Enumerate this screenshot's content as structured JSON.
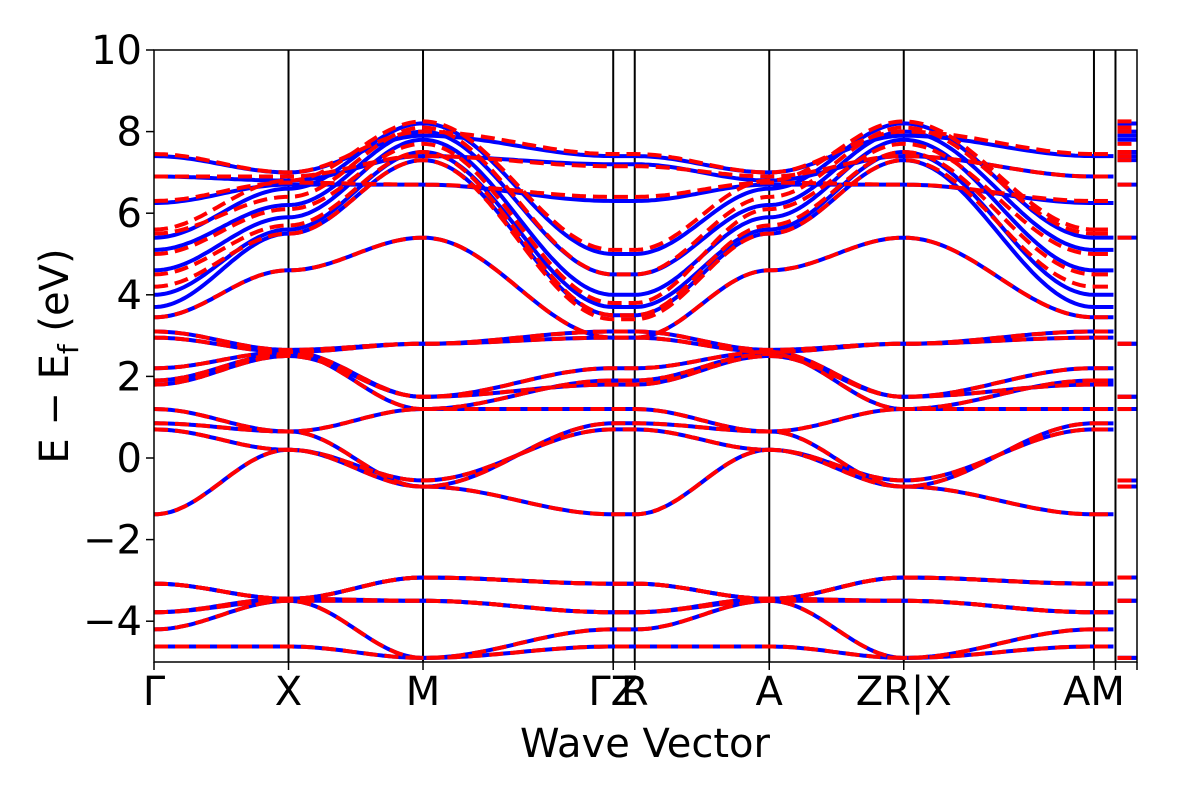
{
  "chart_data": {
    "type": "line",
    "title": "",
    "xlabel": "Wave Vector",
    "ylabel_parts": {
      "main": "E − E",
      "sub": "f",
      "unit": " (eV)"
    },
    "ylim": [
      -5,
      10
    ],
    "yticks": [
      -4,
      -2,
      0,
      2,
      4,
      6,
      8,
      10
    ],
    "ytick_labels": [
      "−4",
      "−2",
      "0",
      "2",
      "4",
      "6",
      "8",
      "10"
    ],
    "kpath": [
      {
        "label": "Γ",
        "x": 0.0
      },
      {
        "label": "X",
        "x": 0.5
      },
      {
        "label": "M",
        "x": 1.0
      },
      {
        "label": "Γ",
        "x": 1.707
      },
      {
        "label": "Z",
        "x": 1.787
      },
      {
        "label": "R",
        "x": 2.287
      },
      {
        "label": "A",
        "x": 2.787
      },
      {
        "label": "Z",
        "x": 3.494
      },
      {
        "label": "R",
        "x": 3.494
      },
      {
        "label": "X",
        "x": 3.574
      },
      {
        "label": "A",
        "x": 3.574
      },
      {
        "label": "M",
        "x": 3.654
      }
    ],
    "tick_text": [
      "Γ",
      "X",
      "M",
      "ΓZ",
      "R",
      "A",
      "ZR|X",
      "AM"
    ],
    "xlim": [
      0.0,
      3.654
    ],
    "legend": "none",
    "grid": false,
    "series_colors": {
      "solid": "#0000ff",
      "dashed": "#ff0000"
    },
    "valence_bands": [
      {
        "nodes": [
          -4.62,
          -4.62,
          -4.9,
          -4.62,
          -4.62,
          -4.62,
          -4.9,
          -4.62
        ]
      },
      {
        "nodes": [
          -4.2,
          -3.5,
          -4.9,
          -4.2,
          -4.2,
          -3.5,
          -4.9,
          -4.2
        ]
      },
      {
        "nodes": [
          -3.78,
          -3.5,
          -3.5,
          -3.78,
          -3.78,
          -3.5,
          -3.5,
          -3.78
        ]
      },
      {
        "nodes": [
          -3.78,
          -3.45,
          -3.5,
          -3.78,
          -3.78,
          -3.45,
          -3.5,
          -3.78
        ]
      },
      {
        "nodes": [
          -3.08,
          -3.45,
          -2.93,
          -3.08,
          -3.08,
          -3.45,
          -2.93,
          -3.08
        ]
      },
      {
        "nodes": [
          -3.08,
          -3.45,
          -2.93,
          -3.08,
          -3.08,
          -3.45,
          -2.93,
          -3.08
        ]
      },
      {
        "nodes": [
          -1.38,
          0.2,
          -0.7,
          -1.38,
          -1.38,
          0.2,
          -0.7,
          -1.38
        ]
      },
      {
        "nodes": [
          0.7,
          0.2,
          -0.55,
          0.7,
          0.7,
          0.2,
          -0.55,
          0.7
        ]
      },
      {
        "nodes": [
          0.85,
          0.65,
          -0.7,
          0.85,
          0.85,
          0.65,
          -0.7,
          0.85
        ]
      },
      {
        "nodes": [
          1.2,
          0.65,
          1.2,
          1.2,
          1.2,
          0.65,
          1.2,
          1.2
        ]
      },
      {
        "nodes": [
          1.8,
          2.5,
          1.5,
          1.8,
          1.8,
          2.5,
          1.5,
          1.8
        ]
      },
      {
        "nodes": [
          1.9,
          2.55,
          1.2,
          1.9,
          1.9,
          2.55,
          1.2,
          1.9
        ]
      },
      {
        "nodes": [
          2.2,
          2.6,
          1.5,
          2.2,
          2.2,
          2.6,
          1.5,
          2.2
        ]
      },
      {
        "nodes": [
          2.95,
          2.6,
          2.8,
          2.95,
          2.95,
          2.6,
          2.8,
          2.95
        ]
      },
      {
        "nodes": [
          3.1,
          2.65,
          2.8,
          3.1,
          3.1,
          2.65,
          2.8,
          3.1
        ]
      }
    ],
    "conduction_bands": [
      {
        "blue": [
          3.45,
          4.6,
          5.4,
          2.95,
          2.95,
          4.6,
          5.4,
          3.45
        ],
        "red": [
          3.45,
          4.6,
          5.4,
          2.95,
          2.95,
          4.6,
          5.4,
          3.45
        ]
      },
      {
        "blue": [
          3.7,
          5.5,
          7.3,
          3.5,
          3.5,
          5.5,
          7.3,
          3.7
        ],
        "red": [
          4.2,
          5.5,
          7.3,
          3.4,
          3.4,
          5.5,
          7.3,
          4.2
        ]
      },
      {
        "blue": [
          4.0,
          5.6,
          7.5,
          3.7,
          3.7,
          5.6,
          7.5,
          4.0
        ],
        "red": [
          4.5,
          5.7,
          7.5,
          3.5,
          3.5,
          5.7,
          7.5,
          4.5
        ]
      },
      {
        "blue": [
          4.6,
          5.9,
          7.8,
          4.0,
          4.0,
          5.9,
          7.8,
          4.6
        ],
        "red": [
          5.0,
          6.1,
          7.7,
          3.8,
          3.8,
          6.1,
          7.7,
          5.0
        ]
      },
      {
        "blue": [
          5.1,
          6.2,
          8.0,
          4.5,
          4.5,
          6.2,
          8.0,
          5.1
        ],
        "red": [
          5.5,
          6.4,
          8.1,
          4.5,
          4.5,
          6.4,
          8.1,
          5.5
        ]
      },
      {
        "blue": [
          5.4,
          6.6,
          8.2,
          5.0,
          5.0,
          6.6,
          8.2,
          5.4
        ],
        "red": [
          5.6,
          6.8,
          8.25,
          5.1,
          5.1,
          6.8,
          8.25,
          5.6
        ]
      },
      {
        "blue": [
          6.25,
          6.7,
          6.7,
          6.3,
          6.3,
          6.7,
          6.7,
          6.25
        ],
        "red": [
          6.3,
          6.75,
          6.7,
          6.4,
          6.4,
          6.75,
          6.7,
          6.3
        ]
      },
      {
        "blue": [
          6.9,
          6.8,
          7.4,
          7.2,
          7.2,
          6.8,
          7.4,
          6.9
        ],
        "red": [
          6.9,
          6.9,
          7.4,
          7.15,
          7.15,
          6.9,
          7.4,
          6.9
        ]
      },
      {
        "blue": [
          7.4,
          7.0,
          7.9,
          7.4,
          7.4,
          7.0,
          7.9,
          7.4
        ],
        "red": [
          7.45,
          7.0,
          8.0,
          7.45,
          7.45,
          7.0,
          8.0,
          7.45
        ]
      }
    ]
  }
}
